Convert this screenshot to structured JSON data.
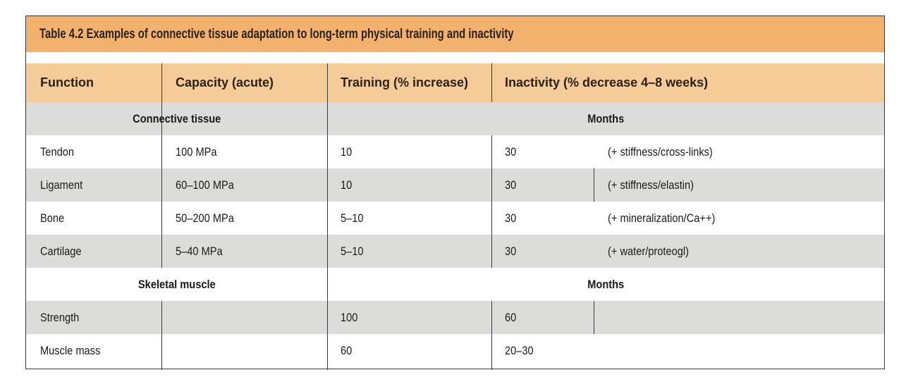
{
  "table": {
    "title": "Table 4.2  Examples of connective tissue adaptation to long-term physical training and inactivity",
    "headers": [
      "Function",
      "Capacity (acute)",
      "Training (% increase)",
      "Inactivity (% decrease 4–8 weeks)"
    ],
    "sections": [
      {
        "label": "Connective tissue",
        "period": "Months",
        "rows": [
          {
            "function": "Tendon",
            "capacity": "100 MPa",
            "training": "10",
            "inactivity": "30",
            "note": "(+ stiffness/cross-links)"
          },
          {
            "function": "Ligament",
            "capacity": "60–100 MPa",
            "training": "10",
            "inactivity": "30",
            "note": "(+ stiffness/elastin)"
          },
          {
            "function": "Bone",
            "capacity": "50–200 MPa",
            "training": "5–10",
            "inactivity": "30",
            "note": "(+ mineralization/Ca++)"
          },
          {
            "function": "Cartilage",
            "capacity": "5–40 MPa",
            "training": "5–10",
            "inactivity": "30",
            "note": "(+ water/proteogl)"
          }
        ]
      },
      {
        "label": "Skeletal muscle",
        "period": "Months",
        "rows": [
          {
            "function": "Strength",
            "capacity": "",
            "training": "100",
            "inactivity": "60",
            "note": ""
          },
          {
            "function": "Muscle mass",
            "capacity": "",
            "training": "60",
            "inactivity": "20–30",
            "note": ""
          }
        ]
      }
    ]
  }
}
